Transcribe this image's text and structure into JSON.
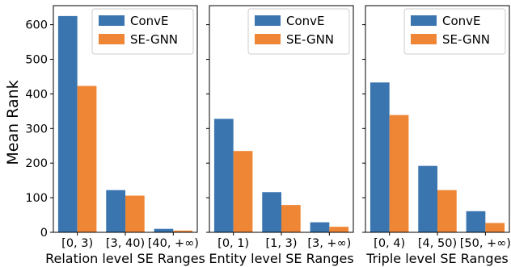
{
  "chart_data": [
    {
      "type": "bar",
      "xlabel": "Relation level SE Ranges",
      "ylabel": "Mean Rank",
      "categories": [
        "[0, 3)",
        "[3, 40)",
        "[40, +∞)"
      ],
      "series": [
        {
          "name": "ConvE",
          "values": [
            625,
            122,
            10
          ]
        },
        {
          "name": "SE-GNN",
          "values": [
            423,
            106,
            5
          ]
        }
      ],
      "ylim": [
        0,
        655
      ],
      "yticks": [
        0,
        100,
        200,
        300,
        400,
        500,
        600
      ],
      "legend": "top-right"
    },
    {
      "type": "bar",
      "xlabel": "Entity level SE Ranges",
      "ylabel": "",
      "categories": [
        "[0, 1)",
        "[1, 3)",
        "[3, +∞)"
      ],
      "series": [
        {
          "name": "ConvE",
          "values": [
            328,
            116,
            29
          ]
        },
        {
          "name": "SE-GNN",
          "values": [
            235,
            79,
            16
          ]
        }
      ],
      "ylim": [
        0,
        655
      ],
      "legend": "top-right"
    },
    {
      "type": "bar",
      "xlabel": "Triple level SE Ranges",
      "ylabel": "",
      "categories": [
        "[0, 4)",
        "[4, 50)",
        "[50, +∞)"
      ],
      "series": [
        {
          "name": "ConvE",
          "values": [
            433,
            192,
            61
          ]
        },
        {
          "name": "SE-GNN",
          "values": [
            339,
            122,
            27
          ]
        }
      ],
      "ylim": [
        0,
        655
      ],
      "legend": "top-right"
    }
  ],
  "colors": {
    "ConvE": "#3a75b0",
    "SE-GNN": "#ef8636"
  }
}
